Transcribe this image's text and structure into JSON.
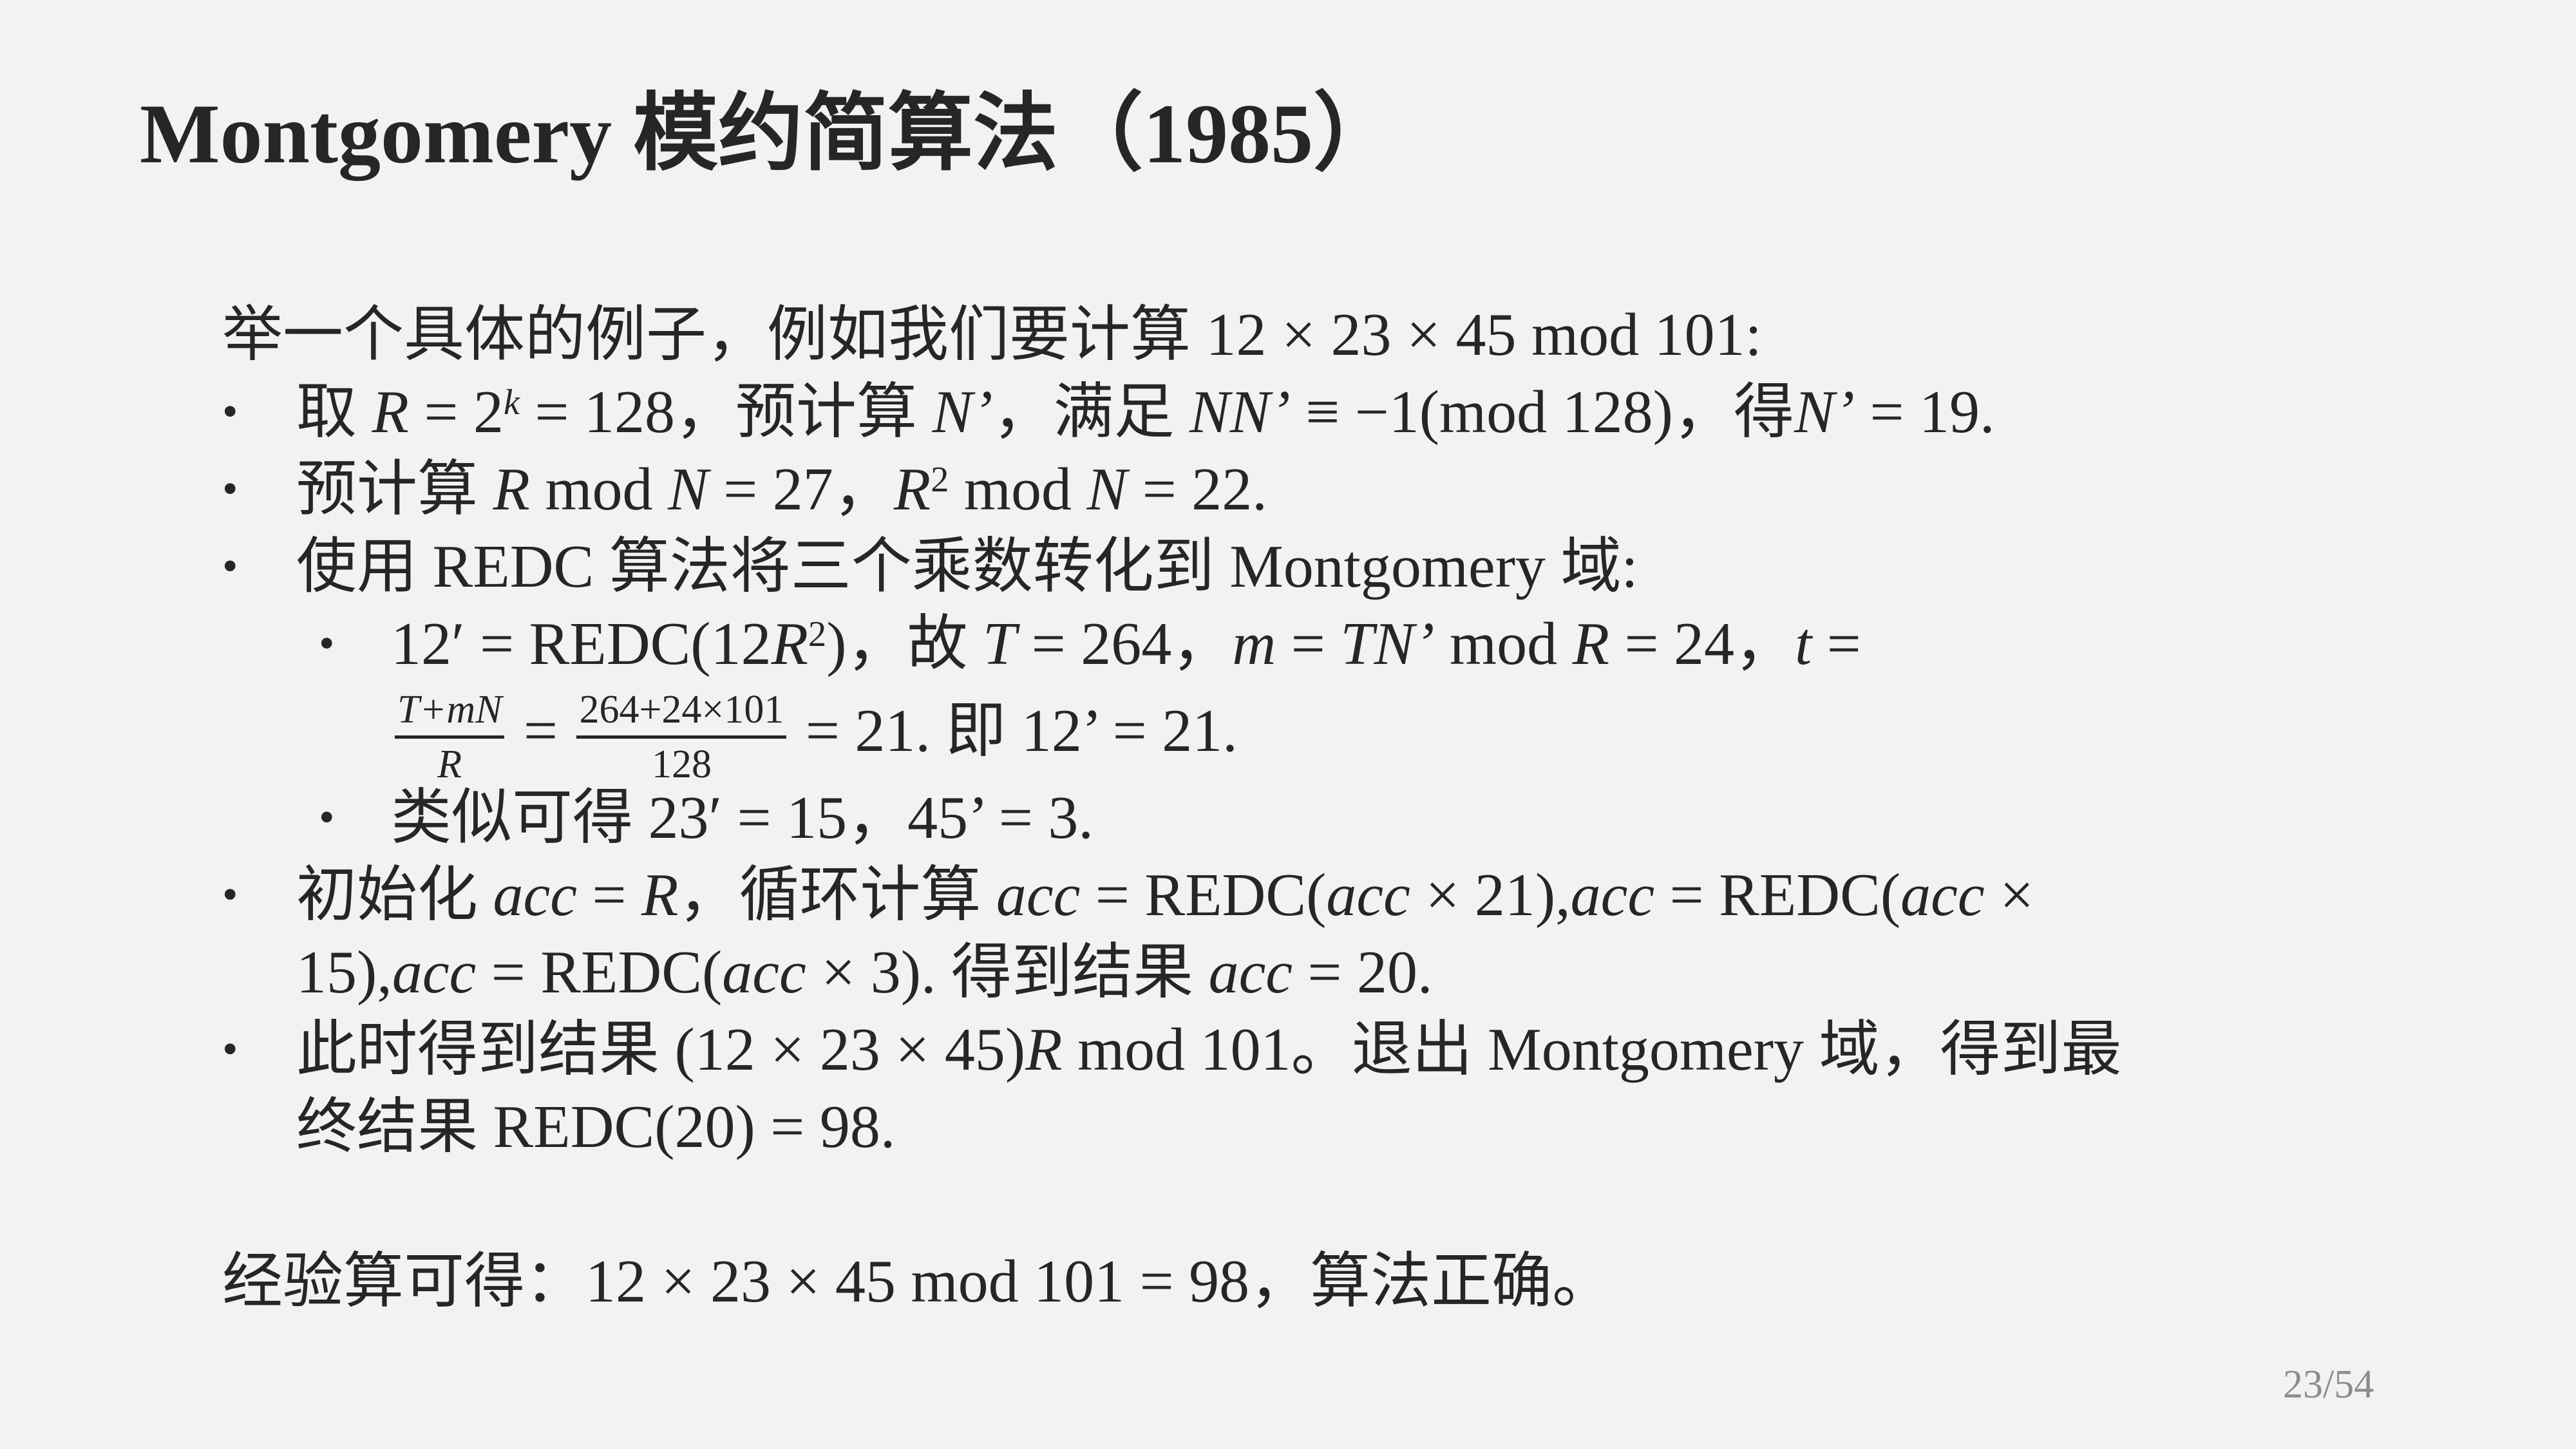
{
  "title": "Montgomery 模约简算法（1985）",
  "page_number": "23/54",
  "bullet_glyph": "•",
  "lines": [
    {
      "kind": "plain",
      "segs": [
        {
          "t": "举一个具体的例子，例如我们要计算 12 × 23 × 45 mod 101:"
        }
      ]
    },
    {
      "kind": "bullet",
      "segs": [
        {
          "t": "取 "
        },
        {
          "t": "R",
          "i": true
        },
        {
          "t": " = 2"
        },
        {
          "t": "k",
          "i": true,
          "sup": true
        },
        {
          "t": " = 128，预计算 "
        },
        {
          "t": "N’",
          "i": true
        },
        {
          "t": "，满足 "
        },
        {
          "t": "NN’",
          "i": true
        },
        {
          "t": " ≡ −1(mod 128)，得"
        },
        {
          "t": "N’",
          "i": true
        },
        {
          "t": " = 19."
        }
      ]
    },
    {
      "kind": "bullet",
      "segs": [
        {
          "t": "预计算 "
        },
        {
          "t": "R",
          "i": true
        },
        {
          "t": " mod "
        },
        {
          "t": "N",
          "i": true
        },
        {
          "t": " = 27，"
        },
        {
          "t": "R",
          "i": true
        },
        {
          "t": "2",
          "sup": true
        },
        {
          "t": " mod "
        },
        {
          "t": "N",
          "i": true
        },
        {
          "t": " = 22."
        }
      ]
    },
    {
      "kind": "bullet",
      "segs": [
        {
          "t": "使用 REDC 算法将三个乘数转化到 Montgomery 域:"
        }
      ]
    },
    {
      "kind": "sub",
      "segs": [
        {
          "t": "12′ = REDC(12"
        },
        {
          "t": "R",
          "i": true
        },
        {
          "t": "2",
          "sup": true
        },
        {
          "t": ")，故 "
        },
        {
          "t": "T",
          "i": true
        },
        {
          "t": " = 264，"
        },
        {
          "t": "m",
          "i": true
        },
        {
          "t": " = "
        },
        {
          "t": "TN’",
          "i": true
        },
        {
          "t": " mod "
        },
        {
          "t": "R",
          "i": true
        },
        {
          "t": " = 24，"
        },
        {
          "t": "t",
          "i": true
        },
        {
          "t": " ="
        }
      ]
    },
    {
      "kind": "subcont",
      "frac": true,
      "segs": [
        {
          "frac": true,
          "num": "T+mN",
          "den": "R",
          "i": true
        },
        {
          "t": " = "
        },
        {
          "frac": true,
          "num": "264+24×101",
          "den": "128"
        },
        {
          "t": " = 21. 即 12’ = 21."
        }
      ]
    },
    {
      "kind": "sub",
      "segs": [
        {
          "t": "类似可得 23′ = 15，45’ = 3."
        }
      ]
    },
    {
      "kind": "bullet",
      "segs": [
        {
          "t": "初始化 "
        },
        {
          "t": "acc",
          "i": true
        },
        {
          "t": " = "
        },
        {
          "t": "R",
          "i": true
        },
        {
          "t": "，循环计算 "
        },
        {
          "t": "acc",
          "i": true
        },
        {
          "t": " = REDC("
        },
        {
          "t": "acc",
          "i": true
        },
        {
          "t": " × 21),"
        },
        {
          "t": "acc",
          "i": true
        },
        {
          "t": " = REDC("
        },
        {
          "t": "acc",
          "i": true
        },
        {
          "t": " ×"
        }
      ]
    },
    {
      "kind": "cont",
      "segs": [
        {
          "t": "15),"
        },
        {
          "t": "acc",
          "i": true
        },
        {
          "t": " = REDC("
        },
        {
          "t": "acc",
          "i": true
        },
        {
          "t": " × 3). 得到结果 "
        },
        {
          "t": "acc",
          "i": true
        },
        {
          "t": " = 20."
        }
      ]
    },
    {
      "kind": "bullet",
      "segs": [
        {
          "t": "此时得到结果 (12 × 23 × 45)"
        },
        {
          "t": "R",
          "i": true
        },
        {
          "t": " mod 101。退出 Montgomery 域，得到最"
        }
      ]
    },
    {
      "kind": "cont",
      "segs": [
        {
          "t": "终结果 REDC(20) = 98."
        }
      ]
    },
    {
      "kind": "plain",
      "gap": true,
      "segs": [
        {
          "t": "经验算可得：12 × 23 × 45 mod 101 = 98，算法正确。"
        }
      ]
    }
  ]
}
